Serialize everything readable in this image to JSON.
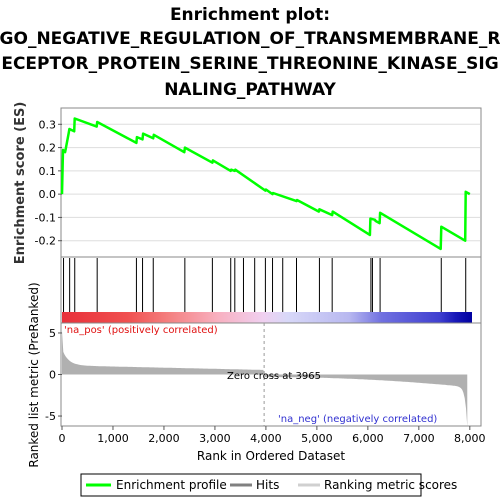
{
  "chart_data": {
    "type": "line",
    "title_lines": [
      "Enrichment plot:",
      "GO_NEGATIVE_REGULATION_OF_TRANSMEMBRANE_R",
      "ECEPTOR_PROTEIN_SERINE_THREONINE_KINASE_SIG",
      "NALING_PATHWAY"
    ],
    "es_panel": {
      "ylabel": "Enrichment score (ES)",
      "ylim": [
        -0.27,
        0.37
      ],
      "yticks": [
        "0.3",
        "0.2",
        "0.1",
        "0.0",
        "-0.1",
        "-0.2"
      ],
      "ytick_values": [
        0.3,
        0.2,
        0.1,
        0.0,
        -0.1,
        -0.2
      ],
      "series": [
        {
          "color": "#00ff00",
          "x": [
            0,
            20,
            60,
            130,
            145,
            240,
            250,
            680,
            690,
            1460,
            1470,
            1580,
            1590,
            1790,
            1800,
            2400,
            2410,
            2950,
            2960,
            3310,
            3320,
            3390,
            3400,
            3990,
            4000,
            4130,
            4140,
            4600,
            4610,
            5040,
            5050,
            5300,
            5310,
            6040,
            6050,
            6140,
            6150,
            6230,
            6240,
            7430,
            7440,
            7910,
            7920,
            8000
          ],
          "y": [
            0.0,
            0.19,
            0.18,
            0.26,
            0.28,
            0.27,
            0.325,
            0.29,
            0.31,
            0.22,
            0.245,
            0.235,
            0.26,
            0.24,
            0.255,
            0.18,
            0.2,
            0.135,
            0.145,
            0.1,
            0.105,
            0.1,
            0.105,
            0.015,
            0.02,
            0.0,
            0.005,
            -0.03,
            -0.025,
            -0.075,
            -0.065,
            -0.09,
            -0.075,
            -0.175,
            -0.105,
            -0.11,
            -0.115,
            -0.125,
            -0.08,
            -0.235,
            -0.14,
            -0.2,
            0.01,
            0.0
          ]
        }
      ]
    },
    "hits": [
      30,
      150,
      250,
      690,
      1460,
      1580,
      1790,
      2410,
      2950,
      3310,
      3390,
      3560,
      3780,
      3990,
      4130,
      4330,
      4600,
      5050,
      5300,
      6060,
      6090,
      6240,
      7440,
      7920
    ],
    "ranked_panel": {
      "ylabel": "Ranked list metric (PreRanked)",
      "ylim": [
        -6.2,
        6.2
      ],
      "yticks": [
        "5",
        "0",
        "-5"
      ],
      "ytick_values": [
        5,
        0,
        -5
      ],
      "zero_cross": 3965,
      "annotations": {
        "pos": "'na_pos' (positively correlated)",
        "neg": "'na_neg' (negatively correlated)",
        "zero": "Zero cross at 3965"
      }
    },
    "x_axis": {
      "label": "Rank in Ordered Dataset",
      "xlim": [
        0,
        8200
      ],
      "xticks": [
        "0",
        "1,000",
        "2,000",
        "3,000",
        "4,000",
        "5,000",
        "6,000",
        "7,000",
        "8,000"
      ],
      "xtick_values": [
        0,
        1000,
        2000,
        3000,
        4000,
        5000,
        6000,
        7000,
        8000
      ]
    },
    "legend": {
      "items": [
        "Enrichment profile",
        "Hits",
        "Ranking metric scores"
      ],
      "colors": [
        "#00ff00",
        "#808080",
        "#d0d0d0"
      ],
      "placement": "bottom"
    }
  }
}
